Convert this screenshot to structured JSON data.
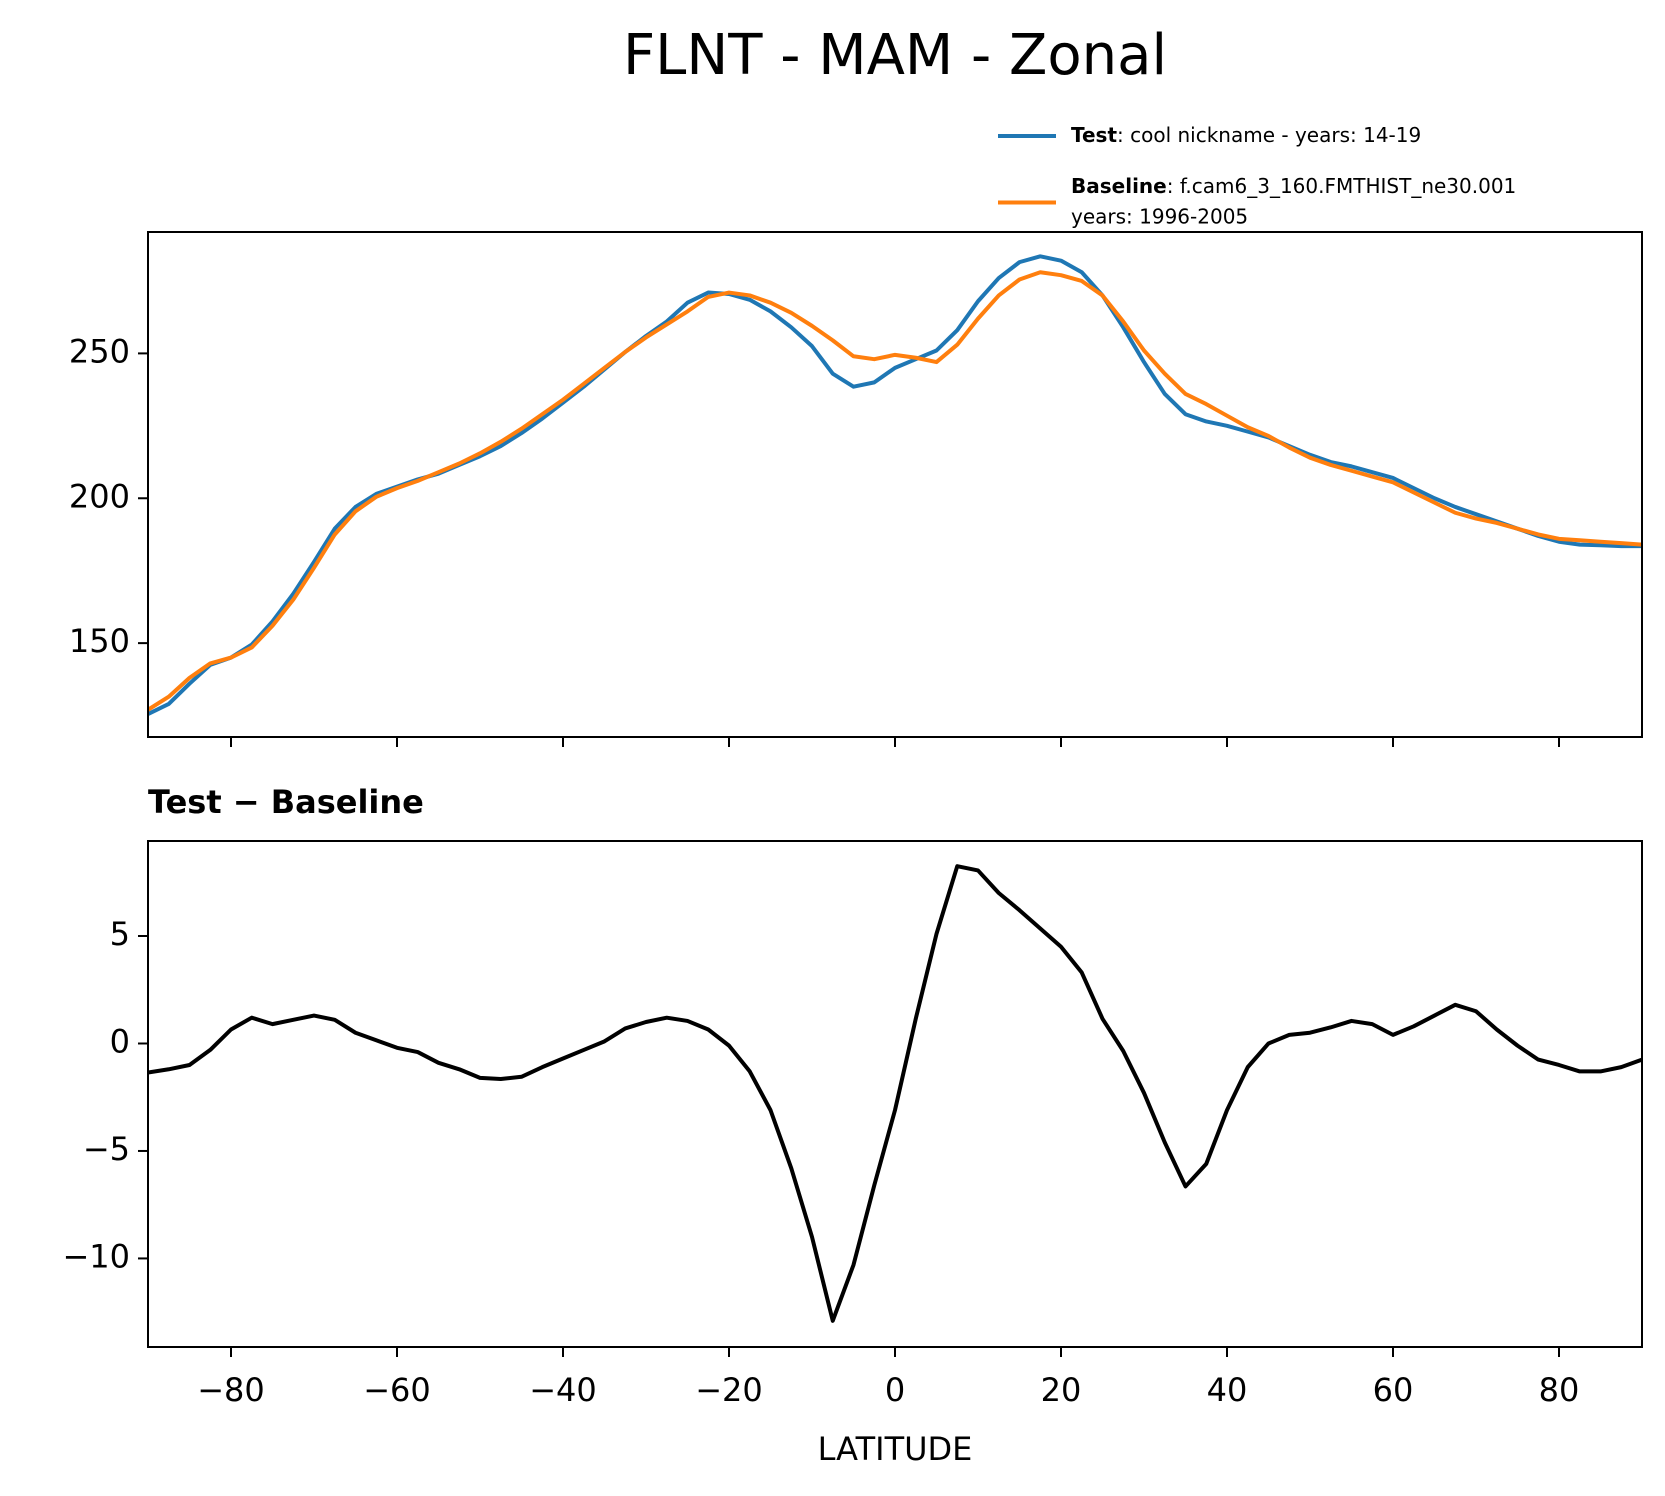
{
  "title": "FLNT - MAM - Zonal",
  "chart_data": [
    {
      "type": "line",
      "x": [
        -90,
        -87.5,
        -85,
        -82.5,
        -80,
        -77.5,
        -75,
        -72.5,
        -70,
        -67.5,
        -65,
        -62.5,
        -60,
        -57.5,
        -55,
        -52.5,
        -50,
        -47.5,
        -45,
        -42.5,
        -40,
        -37.5,
        -35,
        -32.5,
        -30,
        -27.5,
        -25,
        -22.5,
        -20,
        -17.5,
        -15,
        -12.5,
        -10,
        -7.5,
        -5,
        -2.5,
        0,
        2.5,
        5,
        7.5,
        10,
        12.5,
        15,
        17.5,
        20,
        22.5,
        25,
        27.5,
        30,
        32.5,
        35,
        37.5,
        40,
        42.5,
        45,
        47.5,
        50,
        52.5,
        55,
        57.5,
        60,
        62.5,
        65,
        67.5,
        70,
        72.5,
        75,
        77.5,
        80,
        82.5,
        85,
        87.5,
        90
      ],
      "series": [
        {
          "name": "Test",
          "label": [
            ": cool nickname - years: 14-19"
          ],
          "color": "#1f77b4",
          "values": [
            125.5,
            129,
            136,
            142.5,
            145,
            149.5,
            157.5,
            167,
            178,
            189.5,
            197,
            201.5,
            204,
            206.5,
            208.5,
            211.5,
            214.5,
            218,
            222.5,
            227.5,
            233,
            238.5,
            244.5,
            250.5,
            256,
            261,
            267.5,
            271,
            270.5,
            268.5,
            264.5,
            259,
            252.5,
            243,
            238.5,
            240,
            245,
            248,
            251,
            258,
            268,
            276,
            281.5,
            283.5,
            282,
            278,
            270,
            259,
            247,
            236,
            229,
            226.5,
            225,
            223,
            221,
            218,
            215,
            212.5,
            211,
            209,
            207,
            203.5,
            200,
            197,
            194.5,
            192,
            189.5,
            187,
            185,
            184,
            183.8,
            183.5,
            183.5
          ]
        },
        {
          "name": "Baseline",
          "label": [
            ": f.cam6_3_160.FMTHIST_ne30.001",
            "years: 1996-2005"
          ],
          "color": "#ff7f0e",
          "values": [
            127,
            131.5,
            138,
            143,
            145,
            148.5,
            156,
            165,
            176,
            187.5,
            195.5,
            200.5,
            203.5,
            206,
            209,
            212,
            215.5,
            219.5,
            224,
            229,
            234,
            239.5,
            245,
            250.5,
            255.5,
            260,
            264.5,
            269.5,
            271,
            270,
            267.5,
            264,
            259.5,
            254.5,
            249,
            248,
            249.5,
            248.5,
            247,
            253,
            262,
            270,
            275.5,
            278,
            277,
            275,
            270,
            261,
            251,
            243,
            236,
            232.5,
            228.5,
            224.5,
            221.5,
            217.5,
            214,
            211.5,
            209.5,
            207.5,
            205.5,
            202,
            198.5,
            195,
            193,
            191.5,
            189.5,
            187.5,
            186,
            185.5,
            185,
            184.5,
            184
          ]
        }
      ],
      "xlim": [
        -90,
        90
      ],
      "xticks": [
        -80,
        -60,
        -40,
        -20,
        0,
        20,
        40,
        60,
        80
      ],
      "show_xtick_labels": false,
      "ylim": [
        117.6,
        291.9
      ],
      "yticks": [
        150,
        200,
        250
      ],
      "legend": "upper right"
    },
    {
      "type": "line",
      "title": "Test − Baseline",
      "xlabel": "LATITUDE",
      "x": [
        -90,
        -87.5,
        -85,
        -82.5,
        -80,
        -77.5,
        -75,
        -72.5,
        -70,
        -67.5,
        -65,
        -62.5,
        -60,
        -57.5,
        -55,
        -52.5,
        -50,
        -47.5,
        -45,
        -42.5,
        -40,
        -37.5,
        -35,
        -32.5,
        -30,
        -27.5,
        -25,
        -22.5,
        -20,
        -17.5,
        -15,
        -12.5,
        -10,
        -7.5,
        -5,
        -2.5,
        0,
        2.5,
        5,
        7.5,
        10,
        12.5,
        15,
        17.5,
        20,
        22.5,
        25,
        27.5,
        30,
        32.5,
        35,
        37.5,
        40,
        42.5,
        45,
        47.5,
        50,
        52.5,
        55,
        57.5,
        60,
        62.5,
        65,
        67.5,
        70,
        72.5,
        75,
        77.5,
        80,
        82.5,
        85,
        87.5,
        90
      ],
      "series": [
        {
          "color": "#000000",
          "values": [
            -1.35,
            -1.2,
            -1.0,
            -0.3,
            0.65,
            1.2,
            0.9,
            1.1,
            1.3,
            1.1,
            0.5,
            0.15,
            -0.2,
            -0.4,
            -0.9,
            -1.2,
            -1.6,
            -1.65,
            -1.55,
            -1.1,
            -0.7,
            -0.3,
            0.1,
            0.7,
            1.0,
            1.2,
            1.05,
            0.65,
            -0.1,
            -1.3,
            -3.1,
            -5.8,
            -9.0,
            -12.9,
            -10.3,
            -6.6,
            -3.1,
            1.15,
            5.1,
            8.25,
            8.05,
            7.0,
            6.2,
            5.35,
            4.5,
            3.3,
            1.15,
            -0.35,
            -2.3,
            -4.6,
            -6.65,
            -5.6,
            -3.1,
            -1.1,
            0,
            0.4,
            0.5,
            0.75,
            1.05,
            0.9,
            0.4,
            0.8,
            1.3,
            1.8,
            1.5,
            0.65,
            -0.1,
            -0.75,
            -1.0,
            -1.3,
            -1.3,
            -1.1,
            -0.75
          ]
        }
      ],
      "xlim": [
        -90,
        90
      ],
      "xticks": [
        {
          "value": -80,
          "label": "−80"
        },
        {
          "value": -60,
          "label": "−60"
        },
        {
          "value": -40,
          "label": "−40"
        },
        {
          "value": -20,
          "label": "−20"
        },
        0,
        20,
        40,
        60,
        80
      ],
      "show_xtick_labels": true,
      "ylim": [
        -14.12,
        9.42
      ],
      "yticks": [
        {
          "value": -10,
          "label": "−10"
        },
        {
          "value": -5,
          "label": "−5"
        },
        0,
        5
      ]
    }
  ]
}
